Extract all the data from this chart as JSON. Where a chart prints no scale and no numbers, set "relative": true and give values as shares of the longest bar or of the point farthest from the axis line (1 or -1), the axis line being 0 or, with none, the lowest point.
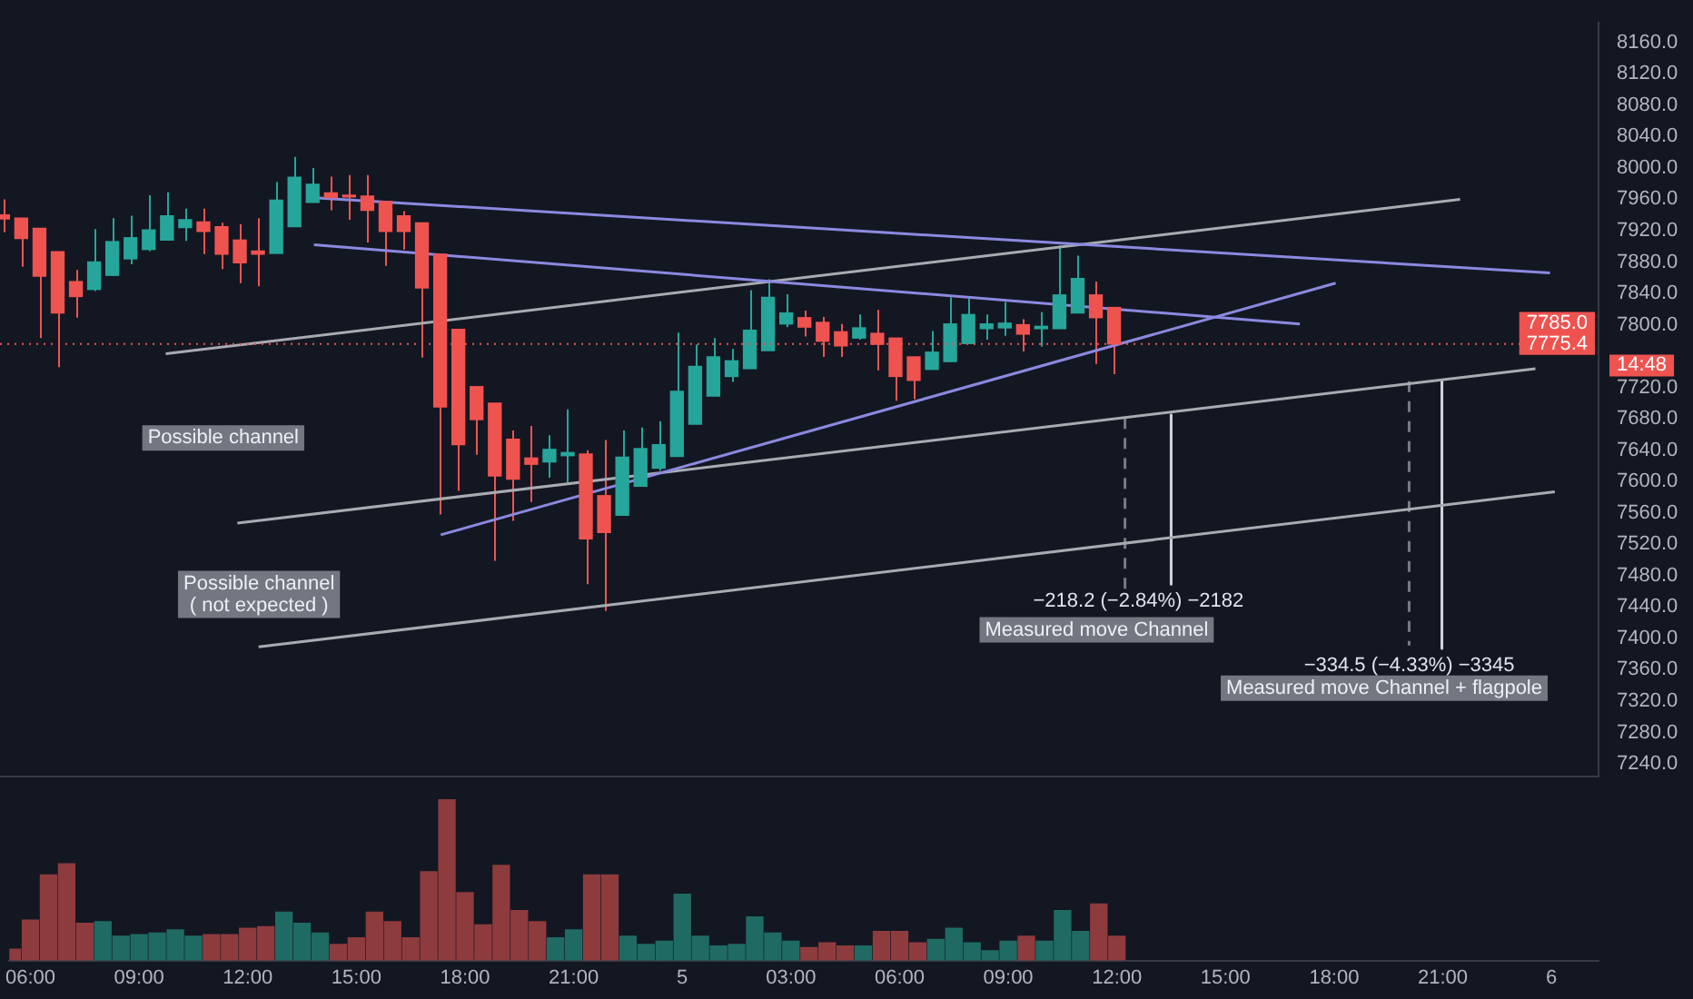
{
  "chart_data": [
    {
      "type": "candlestick",
      "x": [
        "--01-04T05:30",
        "--01-04T06:00",
        "--01-04T06:30",
        "--01-04T07:00",
        "--01-04T07:30",
        "--01-04T08:00",
        "--01-04T08:30",
        "--01-04T09:00",
        "--01-04T09:30",
        "--01-04T10:00",
        "--01-04T10:30",
        "--01-04T11:00",
        "--01-04T11:30",
        "--01-04T12:00",
        "--01-04T12:30",
        "--01-04T13:00",
        "--01-04T13:30",
        "--01-04T14:00",
        "--01-04T14:30",
        "--01-04T15:00",
        "--01-04T15:30",
        "--01-04T16:00",
        "--01-04T16:30",
        "--01-04T17:00",
        "--01-04T17:30",
        "--01-04T18:00",
        "--01-04T18:30",
        "--01-04T19:00",
        "--01-04T19:30",
        "--01-04T20:00",
        "--01-04T20:30",
        "--01-04T21:00",
        "--01-04T21:30",
        "--01-04T22:00",
        "--01-04T22:30",
        "--01-04T23:00",
        "--01-04T23:30",
        "--01-05T00:00",
        "--01-05T00:30",
        "--01-05T01:00",
        "--01-05T01:30",
        "--01-05T02:00",
        "--01-05T02:30",
        "--01-05T03:00",
        "--01-05T03:30",
        "--01-05T04:00",
        "--01-05T04:30",
        "--01-05T05:00",
        "--01-05T05:30",
        "--01-05T06:00",
        "--01-05T06:30",
        "--01-05T07:00",
        "--01-05T07:30",
        "--01-05T08:00",
        "--01-05T08:30",
        "--01-05T09:00",
        "--01-05T09:30",
        "--01-05T10:00",
        "--01-05T10:30",
        "--01-05T11:00",
        "--01-05T11:30",
        "--01-05T12:00"
      ],
      "ohlc": [
        [
          7940,
          7960,
          7918,
          7935
        ],
        [
          7936,
          7936,
          7874,
          7910
        ],
        [
          7923,
          7923,
          7783,
          7862
        ],
        [
          7893,
          7893,
          7746,
          7815
        ],
        [
          7855,
          7870,
          7809,
          7836
        ],
        [
          7845,
          7922,
          7843,
          7880
        ],
        [
          7863,
          7936,
          7862,
          7906
        ],
        [
          7884,
          7939,
          7877,
          7911
        ],
        [
          7896,
          7965,
          7894,
          7921
        ],
        [
          7908,
          7969,
          7908,
          7939
        ],
        [
          7924,
          7948,
          7907,
          7934
        ],
        [
          7931,
          7948,
          7890,
          7919
        ],
        [
          7925,
          7930,
          7871,
          7890
        ],
        [
          7908,
          7928,
          7853,
          7879
        ],
        [
          7894,
          7936,
          7849,
          7890
        ],
        [
          7891,
          7982,
          7891,
          7959
        ],
        [
          7925,
          8014,
          7925,
          7988
        ],
        [
          7956,
          8000,
          7956,
          7979
        ],
        [
          7968,
          7989,
          7946,
          7962
        ],
        [
          7965,
          7991,
          7934,
          7963
        ],
        [
          7964,
          7991,
          7905,
          7946
        ],
        [
          7957,
          7957,
          7875,
          7919
        ],
        [
          7939,
          7945,
          7896,
          7919
        ],
        [
          7930,
          7930,
          7758,
          7847
        ],
        [
          7890,
          7890,
          7558,
          7695
        ],
        [
          7794,
          7794,
          7588,
          7647
        ],
        [
          7721,
          7721,
          7634,
          7679
        ],
        [
          7700,
          7700,
          7499,
          7607
        ],
        [
          7654,
          7665,
          7550,
          7603
        ],
        [
          7630,
          7671,
          7574,
          7622
        ],
        [
          7625,
          7659,
          7605,
          7641
        ],
        [
          7633,
          7692,
          7599,
          7637
        ],
        [
          7635,
          7640,
          7469,
          7527
        ],
        [
          7582,
          7653,
          7435,
          7535
        ],
        [
          7557,
          7665,
          7557,
          7631
        ],
        [
          7594,
          7669,
          7594,
          7642
        ],
        [
          7617,
          7677,
          7614,
          7647
        ],
        [
          7632,
          7790,
          7632,
          7715
        ],
        [
          7673,
          7775,
          7673,
          7747
        ],
        [
          7709,
          7783,
          7709,
          7759
        ],
        [
          7734,
          7769,
          7727,
          7754
        ],
        [
          7744,
          7844,
          7744,
          7793
        ],
        [
          7767,
          7858,
          7767,
          7835
        ],
        [
          7801,
          7839,
          7797,
          7815
        ],
        [
          7809,
          7818,
          7785,
          7797
        ],
        [
          7803,
          7810,
          7759,
          7779
        ],
        [
          7791,
          7801,
          7759,
          7773
        ],
        [
          7783,
          7813,
          7781,
          7796
        ],
        [
          7789,
          7819,
          7742,
          7775
        ],
        [
          7783,
          7783,
          7703,
          7734
        ],
        [
          7759,
          7759,
          7705,
          7729
        ],
        [
          7743,
          7792,
          7743,
          7765
        ],
        [
          7753,
          7835,
          7753,
          7801
        ],
        [
          7776,
          7833,
          7776,
          7813
        ],
        [
          7795,
          7813,
          7781,
          7801
        ],
        [
          7796,
          7829,
          7786,
          7802
        ],
        [
          7800,
          7807,
          7766,
          7788
        ],
        [
          7795,
          7816,
          7772,
          7798
        ],
        [
          7795,
          7901,
          7795,
          7838
        ],
        [
          7815,
          7888,
          7815,
          7859
        ],
        [
          7838,
          7855,
          7750,
          7809
        ],
        [
          7822,
          7822,
          7737,
          7775.4
        ]
      ],
      "series": [
        {
          "type": "line",
          "color": "#8c89e0",
          "x": [
            "--01-04T14:02",
            "--01-05T23:58"
          ],
          "values": [
            7962,
            7866
          ]
        },
        {
          "type": "line",
          "color": "#8c89e0",
          "x": [
            "--01-04T14:02",
            "--01-05T17:06"
          ],
          "values": [
            7902,
            7801
          ]
        },
        {
          "type": "line",
          "color": "#8c89e0",
          "x": [
            "--01-04T17:31",
            "--01-05T18:05"
          ],
          "values": [
            7532,
            7853
          ]
        },
        {
          "type": "line",
          "color": "#a9abb2",
          "x": [
            "--01-04T09:58",
            "--01-05T21:30"
          ],
          "values": [
            7763,
            7960
          ]
        },
        {
          "type": "line",
          "color": "#a9abb2",
          "x": [
            "--01-04T11:56",
            "--01-05T23:34"
          ],
          "values": [
            7547,
            7744
          ]
        },
        {
          "type": "line",
          "color": "#a9abb2",
          "x": [
            "--01-04T12:31",
            "--01-06T00:06"
          ],
          "values": [
            7389,
            7587
          ]
        },
        {
          "type": "line",
          "color": "#787b86",
          "line_style": "dashed",
          "x": [
            "--01-05T12:18",
            "--01-05T12:18"
          ],
          "values": [
            7681,
            7463
          ]
        },
        {
          "type": "line",
          "color": "#d1d4dc",
          "name": "−218.2 (−2.84%) −2182",
          "x": [
            "--01-05T13:34",
            "--01-05T13:34"
          ],
          "values": [
            7685,
            7469
          ]
        },
        {
          "type": "line",
          "color": "#787b86",
          "line_style": "dashed",
          "x": [
            "--01-05T20:06",
            "--01-05T20:06"
          ],
          "values": [
            7728,
            7391
          ]
        },
        {
          "type": "line",
          "color": "#d1d4dc",
          "name": "−334.5 (−4.33%) −3345",
          "x": [
            "--01-05T21:00",
            "--01-05T21:00"
          ],
          "values": [
            7728,
            7387
          ]
        }
      ],
      "xlim": [
        "--01-04T05:25",
        "--01-06T01:18"
      ],
      "ylim": [
        7224,
        8185
      ],
      "yticks": [
        {
          "value": 7240,
          "label": "7240.0"
        },
        {
          "value": 7280,
          "label": "7280.0"
        },
        {
          "value": 7320,
          "label": "7320.0"
        },
        {
          "value": 7360,
          "label": "7360.0"
        },
        {
          "value": 7400,
          "label": "7400.0"
        },
        {
          "value": 7440,
          "label": "7440.0"
        },
        {
          "value": 7480,
          "label": "7480.0"
        },
        {
          "value": 7520,
          "label": "7520.0"
        },
        {
          "value": 7560,
          "label": "7560.0"
        },
        {
          "value": 7600,
          "label": "7600.0"
        },
        {
          "value": 7640,
          "label": "7640.0"
        },
        {
          "value": 7680,
          "label": "7680.0"
        },
        {
          "value": 7720,
          "label": "7720.0"
        },
        {
          "value": 7800,
          "label": "7800.0"
        },
        {
          "value": 7840,
          "label": "7840.0"
        },
        {
          "value": 7880,
          "label": "7880.0"
        },
        {
          "value": 7920,
          "label": "7920.0"
        },
        {
          "value": 7960,
          "label": "7960.0"
        },
        {
          "value": 8000,
          "label": "8000.0"
        },
        {
          "value": 8040,
          "label": "8040.0"
        },
        {
          "value": 8080,
          "label": "8080.0"
        },
        {
          "value": 8120,
          "label": "8120.0"
        },
        {
          "value": 8160,
          "label": "8160.0"
        }
      ],
      "ref_lines": [
        {
          "axis": "y",
          "value": 7775.4,
          "label": "7775.4",
          "color": "#ef5350",
          "line_style": "dotted"
        }
      ],
      "annotations": [
        "7785.0",
        "14:48",
        "Possible channel",
        "Possible channel\n( not expected )",
        "Measured move Channel",
        "Measured move Channel + flagpole"
      ],
      "tick_labels": "y",
      "grid": false
    },
    {
      "type": "bar",
      "relative": true,
      "x": [
        "--01-04T05:30",
        "--01-04T06:00",
        "--01-04T06:30",
        "--01-04T07:00",
        "--01-04T07:30",
        "--01-04T08:00",
        "--01-04T08:30",
        "--01-04T09:00",
        "--01-04T09:30",
        "--01-04T10:00",
        "--01-04T10:30",
        "--01-04T11:00",
        "--01-04T11:30",
        "--01-04T12:00",
        "--01-04T12:30",
        "--01-04T13:00",
        "--01-04T13:30",
        "--01-04T14:00",
        "--01-04T14:30",
        "--01-04T15:00",
        "--01-04T15:30",
        "--01-04T16:00",
        "--01-04T16:30",
        "--01-04T17:00",
        "--01-04T17:30",
        "--01-04T18:00",
        "--01-04T18:30",
        "--01-04T19:00",
        "--01-04T19:30",
        "--01-04T20:00",
        "--01-04T20:30",
        "--01-04T21:00",
        "--01-04T21:30",
        "--01-04T22:00",
        "--01-04T22:30",
        "--01-04T23:00",
        "--01-04T23:30",
        "--01-05T00:00",
        "--01-05T00:30",
        "--01-05T01:00",
        "--01-05T01:30",
        "--01-05T02:00",
        "--01-05T02:30",
        "--01-05T03:00",
        "--01-05T03:30",
        "--01-05T04:00",
        "--01-05T04:30",
        "--01-05T05:00",
        "--01-05T05:30",
        "--01-05T06:00",
        "--01-05T06:30",
        "--01-05T07:00",
        "--01-05T07:30",
        "--01-05T08:00",
        "--01-05T08:30",
        "--01-05T09:00",
        "--01-05T09:30",
        "--01-05T10:00",
        "--01-05T10:30",
        "--01-05T11:00",
        "--01-05T11:30",
        "--01-05T12:00"
      ],
      "values": [
        0.07,
        0.25,
        0.53,
        0.6,
        0.23,
        0.24,
        0.15,
        0.16,
        0.17,
        0.19,
        0.15,
        0.16,
        0.16,
        0.2,
        0.21,
        0.3,
        0.23,
        0.17,
        0.1,
        0.14,
        0.3,
        0.24,
        0.14,
        0.55,
        1,
        0.42,
        0.22,
        0.59,
        0.31,
        0.24,
        0.14,
        0.19,
        0.53,
        0.53,
        0.15,
        0.1,
        0.12,
        0.41,
        0.15,
        0.09,
        0.1,
        0.27,
        0.17,
        0.12,
        0.08,
        0.11,
        0.09,
        0.09,
        0.18,
        0.18,
        0.11,
        0.13,
        0.2,
        0.11,
        0.06,
        0.12,
        0.15,
        0.12,
        0.31,
        0.18,
        0.35,
        0.15
      ],
      "colors": [
        "#8e3b3d",
        "#8e3b3d",
        "#8e3b3d",
        "#8e3b3d",
        "#8e3b3d",
        "#1f6b63",
        "#1f6b63",
        "#1f6b63",
        "#1f6b63",
        "#1f6b63",
        "#1f6b63",
        "#8e3b3d",
        "#8e3b3d",
        "#8e3b3d",
        "#8e3b3d",
        "#1f6b63",
        "#1f6b63",
        "#1f6b63",
        "#8e3b3d",
        "#8e3b3d",
        "#8e3b3d",
        "#8e3b3d",
        "#8e3b3d",
        "#8e3b3d",
        "#8e3b3d",
        "#8e3b3d",
        "#8e3b3d",
        "#8e3b3d",
        "#8e3b3d",
        "#8e3b3d",
        "#1f6b63",
        "#1f6b63",
        "#8e3b3d",
        "#8e3b3d",
        "#1f6b63",
        "#1f6b63",
        "#1f6b63",
        "#1f6b63",
        "#1f6b63",
        "#1f6b63",
        "#1f6b63",
        "#1f6b63",
        "#1f6b63",
        "#1f6b63",
        "#8e3b3d",
        "#8e3b3d",
        "#8e3b3d",
        "#1f6b63",
        "#8e3b3d",
        "#8e3b3d",
        "#8e3b3d",
        "#1f6b63",
        "#1f6b63",
        "#1f6b63",
        "#1f6b63",
        "#1f6b63",
        "#8e3b3d",
        "#1f6b63",
        "#1f6b63",
        "#1f6b63",
        "#8e3b3d",
        "#8e3b3d"
      ],
      "xlim": [
        "--01-04T05:25",
        "--01-06T01:18"
      ],
      "xticks": [
        {
          "value": "--01-04T06:00",
          "label": "06:00"
        },
        {
          "value": "--01-04T09:00",
          "label": "09:00"
        },
        {
          "value": "--01-04T12:00",
          "label": "12:00"
        },
        {
          "value": "--01-04T15:00",
          "label": "15:00"
        },
        {
          "value": "--01-04T18:00",
          "label": "18:00"
        },
        {
          "value": "--01-04T21:00",
          "label": "21:00"
        },
        {
          "value": "--01-05",
          "label": "5"
        },
        {
          "value": "--01-05T03:00",
          "label": "03:00"
        },
        {
          "value": "--01-05T06:00",
          "label": "06:00"
        },
        {
          "value": "--01-05T09:00",
          "label": "09:00"
        },
        {
          "value": "--01-05T12:00",
          "label": "12:00"
        },
        {
          "value": "--01-05T15:00",
          "label": "15:00"
        },
        {
          "value": "--01-05T18:00",
          "label": "18:00"
        },
        {
          "value": "--01-05T21:00",
          "label": "21:00"
        },
        {
          "value": "--01-06",
          "label": "6"
        }
      ],
      "tick_labels": "x",
      "grid": false
    }
  ]
}
